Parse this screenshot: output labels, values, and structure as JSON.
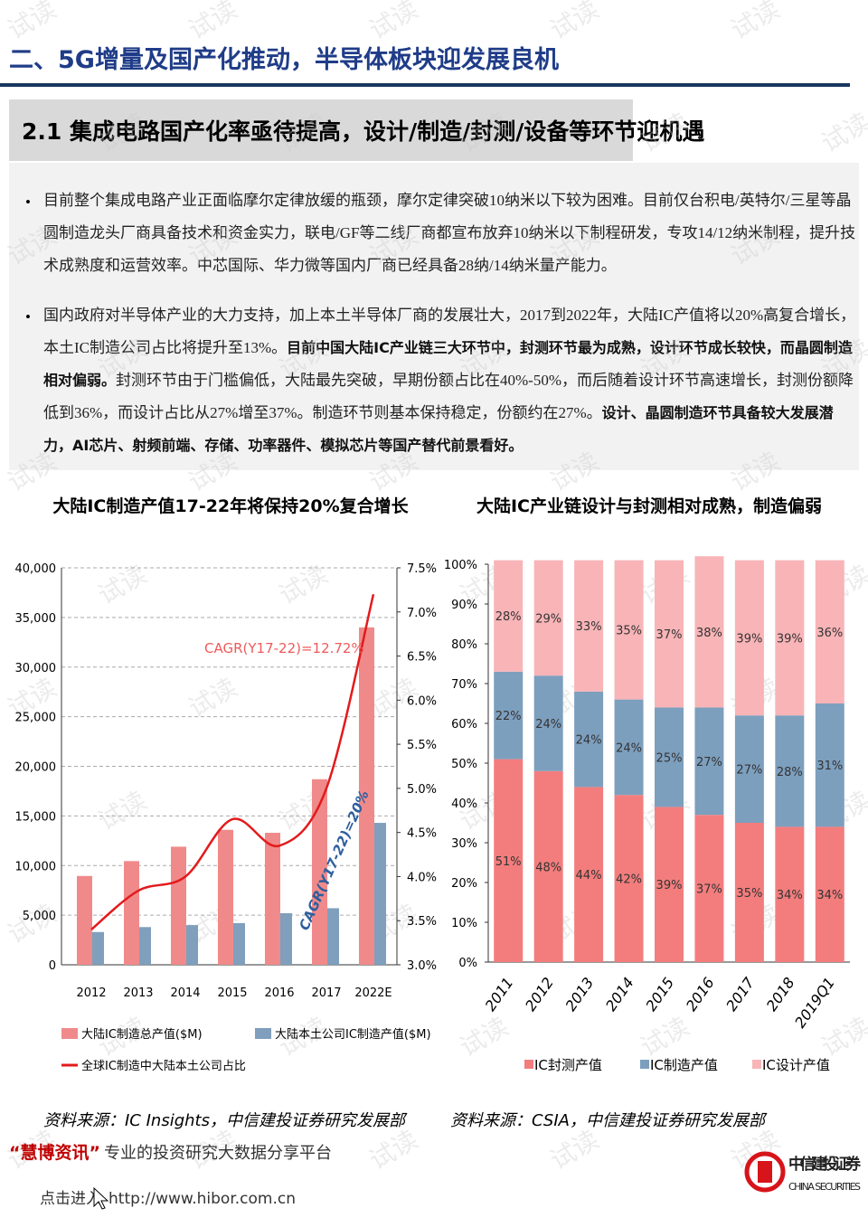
{
  "watermark": "试读",
  "header": {
    "title": "二、5G增量及国产化推动，半导体板块迎发展良机"
  },
  "section": {
    "title": "2.1 集成电路国产化率亟待提高，设计/制造/封测/设备等环节迎机遇"
  },
  "bullets": [
    [
      {
        "text": "目前整个集成电路产业正面临摩尔定律放缓的瓶颈，摩尔定律突破10纳米以下较为困难。目前仅台积电/英特尔/三星等晶圆制造龙头厂商具备技术和资金实力，联电/GF等二线厂商都宣布放弃10纳米以下制程研发，专攻14/12纳米制程，提升技术成熟度和运营效率。中芯国际、华力微等国内厂商已经具备28纳/14纳米量产能力。",
        "bold": false
      }
    ],
    [
      {
        "text": "国内政府对半导体产业的大力支持，加上本土半导体厂商的发展壮大，2017到2022年，大陆IC产值将以20%高复合增长，本土IC制造公司占比将提升至13%。",
        "bold": false
      },
      {
        "text": "目前中国大陆IC产业链三大环节中，封测环节最为成熟，设计环节成长较快，而晶圆制造相对偏弱。",
        "bold": true
      },
      {
        "text": "封测环节由于门槛偏低，大陆最先突破，早期份额占比在40%-50%，而后随着设计环节高速增长，封测份额降低到36%，而设计占比从27%增至37%。制造环节则基本保持稳定，份额约在27%。",
        "bold": false
      },
      {
        "text": "设计、晶圆制造环节具备较大发展潜力，AI芯片、射频前端、存储、功率器件、模拟芯片等国产替代前景看好。",
        "bold": true
      }
    ]
  ],
  "chart_data": [
    {
      "type": "bar",
      "title": "大陆IC制造产值17-22年将保持20%复合增长",
      "categories": [
        "2012",
        "2013",
        "2014",
        "2015",
        "2016",
        "2017",
        "2022E"
      ],
      "series": [
        {
          "name": "大陆IC制造总产值($M)",
          "color": "#f08a8a",
          "values": [
            8950,
            10450,
            11900,
            13600,
            13300,
            18700,
            34000
          ]
        },
        {
          "name": "大陆本土公司IC制造产值($M)",
          "color": "#7f9fbd",
          "values": [
            3300,
            3800,
            4000,
            4200,
            5200,
            5700,
            14300
          ]
        },
        {
          "name": "全球IC制造中大陆本土公司占比",
          "color": "#e31a1c",
          "type": "line",
          "axis": "y2",
          "values": [
            3.4,
            3.84,
            4.0,
            4.65,
            4.35,
            5.0,
            7.2
          ]
        }
      ],
      "ylim": [
        0,
        40000
      ],
      "yticks": [
        0,
        {
          "value": 5000,
          "label": "5,000"
        },
        {
          "value": 10000,
          "label": "10,000"
        },
        {
          "value": 15000,
          "label": "15,000"
        },
        {
          "value": 20000,
          "label": "20,000"
        },
        {
          "value": 25000,
          "label": "25,000"
        },
        {
          "value": 30000,
          "label": "30,000"
        },
        {
          "value": 35000,
          "label": "35,000"
        },
        {
          "value": 40000,
          "label": "40,000"
        }
      ],
      "y2lim": [
        3,
        7.5
      ],
      "y2ticks": [
        {
          "value": 3,
          "label": "3.0%"
        },
        {
          "value": 3.5,
          "label": "3.5%"
        },
        {
          "value": 4,
          "label": "4.0%"
        },
        {
          "value": 4.5,
          "label": "4.5%"
        },
        {
          "value": 5,
          "label": "5.0%"
        },
        {
          "value": 5.5,
          "label": "5.5%"
        },
        {
          "value": 6,
          "label": "6.0%"
        },
        {
          "value": 6.5,
          "label": "6.5%"
        },
        {
          "value": 7,
          "label": "7.0%"
        },
        {
          "value": 7.5,
          "label": "7.5%"
        }
      ],
      "grid": true,
      "annotations": [
        {
          "text": "CAGR(Y17-22)=12.72%",
          "color": "#f05a5a"
        },
        {
          "text": "CAGR(Y17-22)=20%",
          "color": "#2e5e9e"
        }
      ],
      "source": "资料来源：IC Insights，中信建投证券研究发展部"
    },
    {
      "type": "stacked_bar",
      "title": "大陆IC产业链设计与封测相对成熟，制造偏弱",
      "categories": [
        "2011",
        "2012",
        "2013",
        "2014",
        "2015",
        "2016",
        "2017",
        "2018",
        "2019Q1"
      ],
      "series": [
        {
          "name": "IC封测产值",
          "color": "#f37d7d",
          "values": [
            51,
            48,
            44,
            42,
            39,
            37,
            35,
            34,
            34
          ],
          "value_labels": [
            "51%",
            "48%",
            "44%",
            "42%",
            "39%",
            "37%",
            "35%",
            "34%",
            "34%"
          ]
        },
        {
          "name": "IC制造产值",
          "color": "#7d9fbe",
          "values": [
            22,
            24,
            24,
            24,
            25,
            27,
            27,
            28,
            31
          ],
          "value_labels": [
            "22%",
            "24%",
            "24%",
            "24%",
            "25%",
            "27%",
            "27%",
            "28%",
            "31%"
          ]
        },
        {
          "name": "IC设计产值",
          "color": "#f8b4b7",
          "values": [
            28,
            29,
            33,
            35,
            37,
            38,
            39,
            39,
            36
          ],
          "value_labels": [
            "28%",
            "29%",
            "33%",
            "35%",
            "37%",
            "38%",
            "39%",
            "39%",
            "36%"
          ]
        }
      ],
      "ylim": [
        0,
        100
      ],
      "yticks": [
        {
          "value": 0,
          "label": "0%"
        },
        {
          "value": 10,
          "label": "10%"
        },
        {
          "value": 20,
          "label": "20%"
        },
        {
          "value": 30,
          "label": "30%"
        },
        {
          "value": 40,
          "label": "40%"
        },
        {
          "value": 50,
          "label": "50%"
        },
        {
          "value": 60,
          "label": "60%"
        },
        {
          "value": 70,
          "label": "70%"
        },
        {
          "value": 80,
          "label": "80%"
        },
        {
          "value": 90,
          "label": "90%"
        },
        {
          "value": 100,
          "label": "100%"
        }
      ],
      "source": "资料来源：CSIA，中信建投证券研究发展部"
    }
  ],
  "footer": {
    "slogan_brand": "“慧博资讯”",
    "slogan": "专业的投资研究大数据分享平台",
    "link_prefix": "点击进入",
    "link": "http://www.hibor.com.cn",
    "logo_cn": "中信建投证券",
    "logo_en": "CHINA SECURITIES"
  }
}
